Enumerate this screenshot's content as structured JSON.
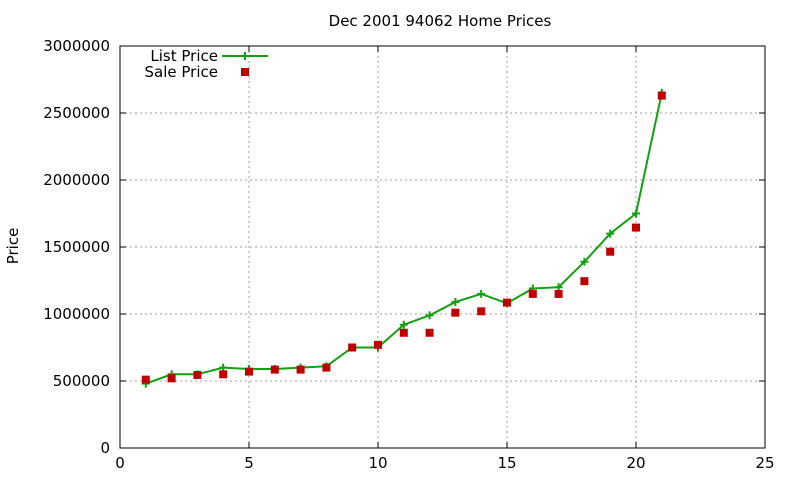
{
  "chart_data": {
    "type": "line",
    "title": "Dec 2001 94062 Home Prices",
    "xlabel": "",
    "ylabel": "Price",
    "xlim": [
      0,
      25
    ],
    "ylim": [
      0,
      3000000
    ],
    "x_ticks": [
      0,
      5,
      10,
      15,
      20,
      25
    ],
    "y_ticks": [
      0,
      500000,
      1000000,
      1500000,
      2000000,
      2500000,
      3000000
    ],
    "grid": true,
    "legend_position": "top-left",
    "series": [
      {
        "name": "List Price",
        "style": "line+cross",
        "color": "#11a011",
        "x": [
          1,
          2,
          3,
          4,
          5,
          6,
          7,
          8,
          9,
          10,
          11,
          12,
          13,
          14,
          15,
          16,
          17,
          18,
          19,
          20,
          21
        ],
        "values": [
          480000,
          550000,
          550000,
          600000,
          590000,
          590000,
          600000,
          610000,
          750000,
          750000,
          920000,
          990000,
          1090000,
          1150000,
          1080000,
          1190000,
          1200000,
          1390000,
          1600000,
          1750000,
          2650000
        ]
      },
      {
        "name": "Sale Price",
        "style": "square",
        "color": "#c00000",
        "x": [
          1,
          2,
          3,
          4,
          5,
          6,
          7,
          8,
          9,
          10,
          11,
          12,
          13,
          14,
          15,
          16,
          17,
          18,
          19,
          20,
          21
        ],
        "values": [
          510000,
          520000,
          545000,
          550000,
          570000,
          585000,
          585000,
          600000,
          750000,
          770000,
          860000,
          860000,
          1010000,
          1020000,
          1085000,
          1150000,
          1150000,
          1245000,
          1465000,
          1645000,
          2630000
        ]
      }
    ]
  }
}
